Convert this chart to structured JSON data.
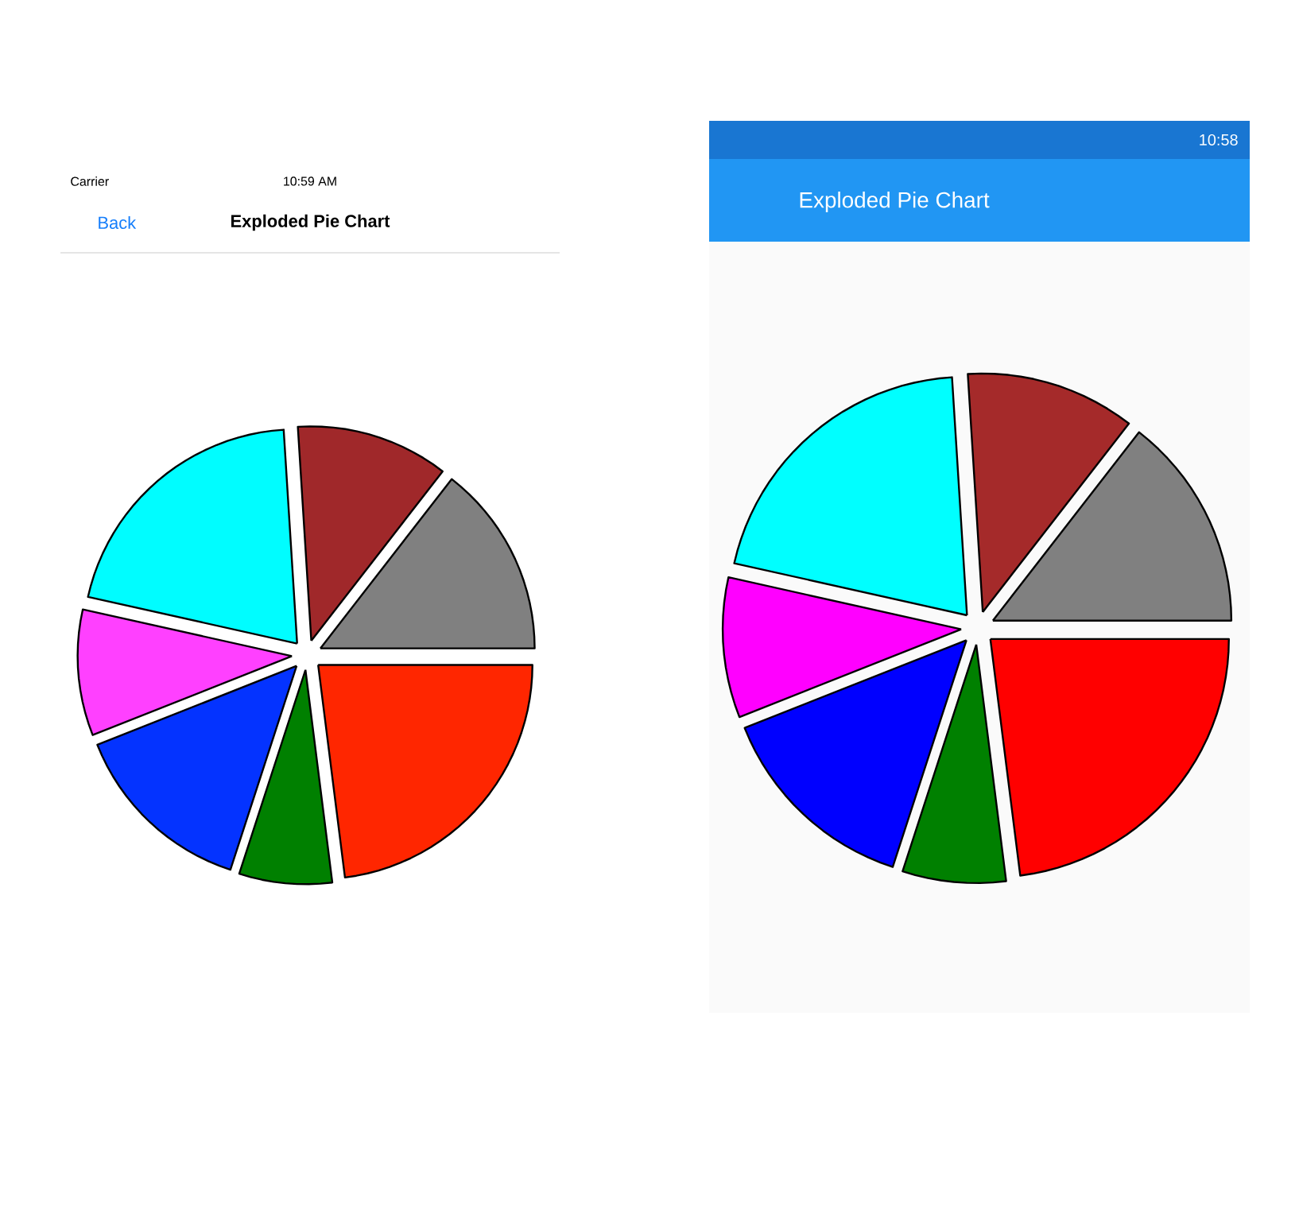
{
  "chart_data": [
    {
      "type": "pie",
      "title": "Exploded Pie Chart",
      "categories": [
        null,
        null,
        null,
        null,
        null,
        null,
        null
      ],
      "values": [
        23,
        7,
        14,
        9.5,
        20.5,
        11.5,
        14.5
      ],
      "colors": [
        "#ff2600",
        "#008000",
        "#0433ff",
        "#ff40ff",
        "#00fdff",
        "#a0282a",
        "#808080"
      ],
      "annotations": [
        "Carrier",
        "10:59 AM",
        "Back"
      ]
    },
    {
      "type": "pie",
      "title": "Exploded Pie Chart",
      "categories": [
        null,
        null,
        null,
        null,
        null,
        null,
        null
      ],
      "values": [
        23,
        7,
        14,
        9.5,
        20.5,
        11.5,
        14.5
      ],
      "colors": [
        "#ff0000",
        "#008000",
        "#0000ff",
        "#ff00ff",
        "#00ffff",
        "#a52a2a",
        "#808080"
      ],
      "annotations": [
        "10:58"
      ]
    }
  ]
}
